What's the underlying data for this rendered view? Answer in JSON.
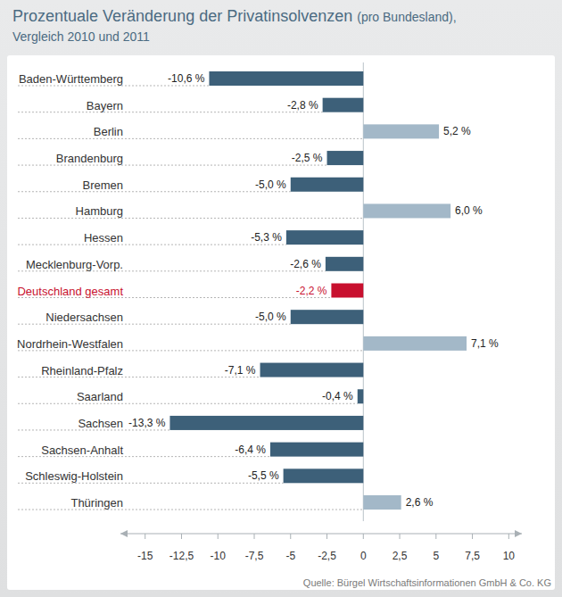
{
  "chart_data": {
    "type": "bar",
    "orientation": "horizontal",
    "title": "Prozentuale Veränderung der Privatinsolvenzen",
    "subtitle": [
      "(pro Bundesland),",
      "Vergleich 2010 und 2011"
    ],
    "annotations": [
      "Quelle: Bürgel Wirtschaftsinformationen GmbH & Co. KG"
    ],
    "categories": [
      "Baden-Württemberg",
      "Bayern",
      "Berlin",
      "Brandenburg",
      "Bremen",
      "Hamburg",
      "Hessen",
      "Mecklenburg-Vorp.",
      "Deutschland gesamt",
      "Niedersachsen",
      "Nordrhein-Westfalen",
      "Rheinland-Pfalz",
      "Saarland",
      "Sachsen",
      "Sachsen-Anhalt",
      "Schleswig-Holstein",
      "Thüringen"
    ],
    "values": [
      -10.6,
      -2.8,
      5.2,
      -2.5,
      -5.0,
      6.0,
      -5.3,
      -2.6,
      -2.2,
      -5.0,
      7.1,
      -7.1,
      -0.4,
      -13.3,
      -6.4,
      -5.5,
      2.6
    ],
    "value_labels": [
      "-10,6 %",
      "-2,8 %",
      "5,2 %",
      "-2,5 %",
      "-5,0 %",
      "6,0 %",
      "-5,3 %",
      "-2,6 %",
      "-2,2 %",
      "-5,0 %",
      "7,1 %",
      "-7,1 %",
      "-0,4 %",
      "-13,3 %",
      "-6,4 %",
      "-5,5 %",
      "2,6 %"
    ],
    "colors": [
      "#3d6079",
      "#3d6079",
      "#a3b8c8",
      "#3d6079",
      "#3d6079",
      "#a3b8c8",
      "#3d6079",
      "#3d6079",
      "#c8102e",
      "#3d6079",
      "#a3b8c8",
      "#3d6079",
      "#3d6079",
      "#3d6079",
      "#3d6079",
      "#3d6079",
      "#a3b8c8"
    ],
    "xlim": [
      -16.7,
      10.9
    ],
    "xticks": [
      -15,
      {
        "value": -12.5,
        "label": "-12,5"
      },
      -10,
      {
        "value": -7.5,
        "label": "-7,5"
      },
      -5,
      {
        "value": -2.5,
        "label": "-2,5"
      },
      0,
      {
        "value": 2.5,
        "label": "2,5"
      },
      5,
      {
        "value": 7.5,
        "label": "7,5"
      },
      10
    ],
    "grid": false,
    "data_labels": true
  }
}
